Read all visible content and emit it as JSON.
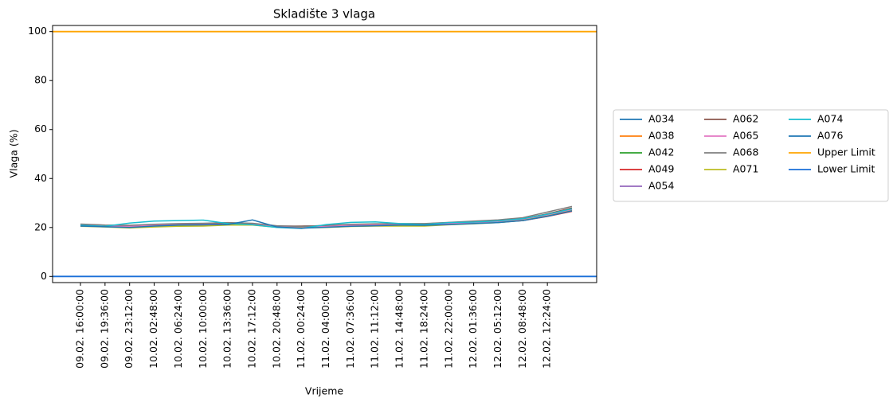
{
  "chart_data": {
    "type": "line",
    "title": "Skladište 3 vlaga",
    "xlabel": "Vrijeme",
    "ylabel": "Vlaga (%)",
    "categories": [
      "09.02. 16:00:00",
      "09.02. 19:36:00",
      "09.02. 23:12:00",
      "10.02. 02:48:00",
      "10.02. 06:24:00",
      "10.02. 10:00:00",
      "10.02. 13:36:00",
      "10.02. 17:12:00",
      "10.02. 20:48:00",
      "11.02. 00:24:00",
      "11.02. 04:00:00",
      "11.02. 07:36:00",
      "11.02. 11:12:00",
      "11.02. 14:48:00",
      "11.02. 18:24:00",
      "11.02. 22:00:00",
      "12.02. 01:36:00",
      "12.02. 05:12:00",
      "12.02. 08:48:00",
      "12.02. 12:24:00",
      null
    ],
    "ylim": [
      -2.5,
      102.5
    ],
    "yticks": [
      0,
      20,
      40,
      60,
      80,
      100
    ],
    "grid": false,
    "legend": "outside right",
    "series": [
      {
        "name": "A034",
        "color": "#1f77b4",
        "values": [
          21,
          20.6,
          20.3,
          20.8,
          21.3,
          21.4,
          21.2,
          21.6,
          20.4,
          20,
          20.4,
          20.9,
          21,
          21.3,
          21.1,
          21.6,
          21.9,
          22.3,
          23.1,
          25.1,
          27.3
        ]
      },
      {
        "name": "A038",
        "color": "#ff7f0e",
        "values": [
          20.8,
          20.5,
          20.2,
          20.6,
          21,
          21.1,
          21.5,
          21.4,
          20.2,
          19.8,
          20.2,
          20.6,
          20.8,
          21.1,
          21,
          21.4,
          21.8,
          22.2,
          23,
          24.9,
          27.1
        ]
      },
      {
        "name": "A042",
        "color": "#2ca02c",
        "values": [
          21.2,
          20.7,
          20.1,
          20.5,
          21,
          21.2,
          21.3,
          21.3,
          20.5,
          20.1,
          20.5,
          20.8,
          21.1,
          21.2,
          21.2,
          21.7,
          22,
          22.5,
          23.2,
          25.2,
          27.4
        ]
      },
      {
        "name": "A049",
        "color": "#d62728",
        "values": [
          21.3,
          20.9,
          20.8,
          21.1,
          21.4,
          21.5,
          21.9,
          21.6,
          20.6,
          20.5,
          20.6,
          21.1,
          21.3,
          21.4,
          21.4,
          21.8,
          22,
          22.1,
          22.8,
          24.5,
          26.6
        ]
      },
      {
        "name": "A054",
        "color": "#9467bd",
        "values": [
          20.7,
          20.4,
          20,
          20.5,
          20.9,
          21,
          21,
          21.2,
          20.3,
          20,
          20.1,
          20.5,
          20.8,
          21,
          21,
          21.4,
          21.7,
          22.1,
          22.9,
          24.7,
          26.9
        ]
      },
      {
        "name": "A062",
        "color": "#8c564b",
        "values": [
          21.1,
          20.8,
          20.6,
          21,
          21.4,
          21.6,
          21.8,
          21.5,
          20.5,
          20.6,
          20.7,
          21.2,
          21.4,
          21.5,
          21.5,
          22,
          22.4,
          22.8,
          23.6,
          25.6,
          28
        ]
      },
      {
        "name": "A065",
        "color": "#e377c2",
        "values": [
          21,
          20.6,
          20.4,
          20.9,
          21.2,
          21.3,
          21.2,
          21.2,
          20.4,
          20.2,
          20.4,
          20.9,
          21.1,
          21.3,
          21.2,
          21.6,
          21.9,
          22.4,
          23.2,
          25,
          27.2
        ]
      },
      {
        "name": "A068",
        "color": "#7f7f7f",
        "values": [
          21.4,
          21,
          20.9,
          21.3,
          21.6,
          21.7,
          22,
          21.7,
          20.7,
          20.4,
          20.9,
          21.3,
          21.5,
          21.6,
          21.6,
          22.1,
          22.6,
          23.1,
          24,
          26.3,
          28.6
        ]
      },
      {
        "name": "A071",
        "color": "#bcbd22",
        "values": [
          20.5,
          20.2,
          19.8,
          20.2,
          20.5,
          20.6,
          21,
          21,
          20.1,
          19.8,
          20,
          20.4,
          20.6,
          20.6,
          20.6,
          21.1,
          21.5,
          22,
          22.9,
          24.7,
          26.9
        ]
      },
      {
        "name": "A074",
        "color": "#17becf",
        "values": [
          20.9,
          20.5,
          21.8,
          22.6,
          22.8,
          23,
          21.6,
          21.1,
          20,
          19.6,
          21.2,
          22.1,
          22.3,
          21.6,
          21.2,
          22,
          22.2,
          22.7,
          23.6,
          25.4,
          27.6
        ]
      },
      {
        "name": "A076",
        "color": "#1f77b4",
        "values": [
          20.6,
          20.3,
          20,
          20.6,
          21,
          21.1,
          21.2,
          23.1,
          20.2,
          19.7,
          20.1,
          20.5,
          20.7,
          21,
          20.9,
          21.2,
          21.6,
          22,
          22.8,
          24.6,
          26.8
        ]
      },
      {
        "name": "Upper Limit",
        "color": "#ffa500",
        "value": 100
      },
      {
        "name": "Lower Limit",
        "color": "#1a6fd8",
        "value": 0
      }
    ]
  }
}
